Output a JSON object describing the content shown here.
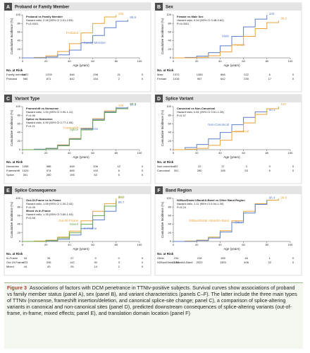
{
  "chart_data": [
    {
      "type": "line",
      "panel": "A",
      "title": "Proband or Family Member",
      "xlabel": "Age (years)",
      "ylabel": "Cumulative Incidence (%)",
      "x": [
        0,
        10,
        20,
        30,
        40,
        50,
        60,
        70,
        80,
        90
      ],
      "xlim": [
        0,
        100
      ],
      "xticks": [
        0,
        20,
        40,
        60,
        80,
        100
      ],
      "ylim": [
        0,
        100
      ],
      "yticks": [
        0,
        20,
        40,
        60,
        80,
        100
      ],
      "series": [
        {
          "name": "Proband",
          "color": "#e8a23a",
          "values": [
            0,
            1,
            5,
            15,
            33,
            58,
            80,
            95,
            100,
            null
          ],
          "end_value": 100
        },
        {
          "name": "Family Member",
          "color": "#5b7fc7",
          "values": [
            0,
            0,
            2,
            7,
            18,
            35,
            52,
            70,
            85,
            88.6
          ],
          "end_value": 88.6
        }
      ],
      "annotations": [
        "Proband vs Family Member",
        "Hazard ratio, 2.26 (95% CI 2.01-2.53)",
        "P<0.0001"
      ],
      "at_risk": {
        "title": "No. at Risk",
        "rows": [
          {
            "label": "Family member",
            "values": [
              1422,
              1378,
              846,
              298,
              21,
              0
            ]
          },
          {
            "label": "Proband",
            "values": [
              966,
              871,
              642,
              154,
              2,
              0
            ]
          }
        ]
      }
    },
    {
      "type": "line",
      "panel": "B",
      "title": "Sex",
      "xlabel": "Age (years)",
      "ylabel": "Cumulative Incidence (%)",
      "x": [
        0,
        10,
        20,
        30,
        40,
        50,
        60,
        70,
        80,
        90
      ],
      "xlim": [
        0,
        100
      ],
      "xticks": [
        0,
        20,
        40,
        60,
        80,
        100
      ],
      "ylim": [
        0,
        100
      ],
      "yticks": [
        0,
        20,
        40,
        60,
        80,
        100
      ],
      "series": [
        {
          "name": "Male",
          "color": "#5b7fc7",
          "values": [
            0,
            1,
            4,
            12,
            28,
            50,
            72,
            90,
            100,
            null
          ],
          "end_value": 100
        },
        {
          "name": "Female",
          "color": "#e8a23a",
          "values": [
            0,
            0,
            1,
            5,
            14,
            30,
            50,
            68,
            82,
            86.2
          ],
          "end_value": 86.2
        }
      ],
      "annotations": [
        "Female vs Male Sex",
        "Hazard ratio, 0.54 (95% CI 0.48-0.60)",
        "P<0.0001"
      ],
      "at_risk": {
        "title": "No. at Risk",
        "rows": [
          {
            "label": "Male",
            "values": [
              1372,
              1283,
              866,
              222,
              6,
              0
            ]
          },
          {
            "label": "Female",
            "values": [
              1016,
              957,
              642,
              230,
              17,
              0
            ]
          }
        ]
      }
    },
    {
      "type": "line",
      "panel": "C",
      "title": "Variant Type",
      "xlabel": "Age (years)",
      "ylabel": "Cumulative Incidence (%)",
      "x": [
        0,
        10,
        20,
        30,
        40,
        50,
        60,
        70,
        80,
        90
      ],
      "xlim": [
        0,
        100
      ],
      "xticks": [
        0,
        20,
        40,
        60,
        80,
        100
      ],
      "ylim": [
        0,
        100
      ],
      "yticks": [
        0,
        20,
        40,
        60,
        80,
        100
      ],
      "series": [
        {
          "name": "Frameshift",
          "color": "#e8a23a",
          "values": [
            0,
            1,
            3,
            11,
            26,
            50,
            72,
            90,
            100,
            null
          ],
          "end_value": 100
        },
        {
          "name": "Nonsense",
          "color": "#5b7fc7",
          "values": [
            0,
            1,
            3,
            10,
            25,
            48,
            70,
            88,
            97,
            99.3
          ],
          "end_value": 99.3
        },
        {
          "name": "Splice",
          "color": "#6aa84f",
          "values": [
            0,
            0,
            2,
            9,
            24,
            46,
            68,
            86,
            95,
            97.3
          ],
          "end_value": 97.3
        }
      ],
      "annotations": [
        "Frameshift vs Nonsense",
        "Hazard ratio, 1.00 (95% CI 0.90-1.11)",
        "P=0.96",
        "Splice vs Nonsense",
        "Hazard ratio, 0.90 (95% CI 0.77-1.06)",
        "P=0.21"
      ],
      "at_risk": {
        "title": "No. at Risk",
        "rows": [
          {
            "label": "Nonsense",
            "values": [
              1058,
              986,
              648,
              206,
              12,
              0
            ]
          },
          {
            "label": "Frameshift",
            "values": [
              1029,
              974,
              665,
              193,
              6,
              0
            ]
          },
          {
            "label": "Splice",
            "values": [
              301,
              280,
              195,
              53,
              5,
              0
            ]
          }
        ]
      }
    },
    {
      "type": "line",
      "panel": "D",
      "title": "Splice Variant",
      "xlabel": "Age (years)",
      "ylabel": "Cumulative Incidence (%)",
      "x": [
        0,
        10,
        20,
        30,
        40,
        50,
        60,
        70,
        80,
        90
      ],
      "xlim": [
        0,
        100
      ],
      "xticks": [
        0,
        20,
        40,
        60,
        80,
        100
      ],
      "ylim": [
        0,
        100
      ],
      "yticks": [
        0,
        20,
        40,
        60,
        80,
        100
      ],
      "series": [
        {
          "name": "Non-Canonical",
          "color": "#5b7fc7",
          "values": [
            0,
            5,
            12,
            25,
            40,
            58,
            75,
            88,
            90.3,
            null
          ],
          "end_value": 90.3
        },
        {
          "name": "Canonical",
          "color": "#e8a23a",
          "values": [
            0,
            1,
            3,
            10,
            22,
            42,
            62,
            82,
            95,
            100
          ],
          "end_value": 100
        }
      ],
      "annotations": [
        "Canonical vs Non-Canonical",
        "Hazard ratio, 0.81 (95% CI 0.51-1.28)",
        "P=0.37"
      ],
      "at_risk": {
        "title": "No. at Risk",
        "rows": [
          {
            "label": "Non-canonical",
            "values": [
              24,
              22,
              17,
              3,
              0,
              0
            ]
          },
          {
            "label": "Canonical",
            "values": [
              301,
              280,
              195,
              53,
              5,
              0
            ]
          }
        ]
      }
    },
    {
      "type": "line",
      "panel": "E",
      "title": "Splice Consequence",
      "xlabel": "Age (years)",
      "ylabel": "Cumulative Incidence (%)",
      "x": [
        0,
        10,
        20,
        30,
        40,
        50,
        60,
        70,
        80,
        90
      ],
      "xlim": [
        0,
        100
      ],
      "xticks": [
        0,
        20,
        40,
        60,
        80,
        100
      ],
      "ylim": [
        0,
        100
      ],
      "yticks": [
        0,
        20,
        40,
        60,
        80,
        100
      ],
      "series": [
        {
          "name": "Out-Of-Frame",
          "color": "#e8a23a",
          "values": [
            0,
            1,
            3,
            10,
            24,
            48,
            70,
            88,
            100,
            null
          ],
          "end_value": 100
        },
        {
          "name": "In-Frame",
          "color": "#5b7fc7",
          "values": [
            0,
            0,
            1,
            5,
            15,
            30,
            50,
            70,
            85.7,
            null
          ],
          "end_value": 85.7
        },
        {
          "name": "Mixed",
          "color": "#6aa84f",
          "values": [
            0,
            0,
            2,
            8,
            20,
            40,
            60,
            82,
            94.9,
            null
          ],
          "end_value": 94.9
        }
      ],
      "annotations": [
        "Out-Of-Frame vs In-Frame",
        "Hazard ratio, 1.56 (95% CI 1.00-2.44)",
        "P=0.05",
        "Mixed vs In-Frame",
        "Hazard ratio, 1.35 (95% CI 0.69-1.93)",
        "P=0.58"
      ],
      "at_risk": {
        "title": "No. at Risk",
        "rows": [
          {
            "label": "In-Frame",
            "values": [
              34,
              34,
              27,
              9,
              0,
              0
            ]
          },
          {
            "label": "Out-Of-Frame",
            "values": [
              223,
              206,
              142,
              30,
              3,
              0
            ]
          },
          {
            "label": "Mixed",
            "values": [
              44,
              40,
              26,
              14,
              2,
              0
            ]
          }
        ]
      }
    },
    {
      "type": "line",
      "panel": "F",
      "title": "Band Region",
      "xlabel": "Age (years)",
      "ylabel": "Cumulative Incidence (%)",
      "x": [
        0,
        10,
        20,
        30,
        40,
        50,
        60,
        70,
        80,
        90
      ],
      "xlim": [
        0,
        100
      ],
      "xticks": [
        0,
        20,
        40,
        60,
        80,
        100
      ],
      "ylim": [
        0,
        100
      ],
      "yticks": [
        0,
        20,
        40,
        60,
        80,
        100
      ],
      "series": [
        {
          "name": "N2Bus/Distal I-Band/A-Band",
          "color": "#e8a23a",
          "values": [
            0,
            1,
            3,
            10,
            25,
            48,
            70,
            88,
            96,
            99.6
          ],
          "end_value": 99.6
        },
        {
          "name": "Other",
          "color": "#5b7fc7",
          "values": [
            0,
            0,
            2,
            8,
            22,
            44,
            66,
            86,
            96.4,
            null
          ],
          "end_value": 96.4
        }
      ],
      "annotations": [
        "N2Bus/Distal I-Band/A-Band vs Other Band Region",
        "Hazard ratio, 1.11 (95% CI 0.94-1.30)",
        "P=0.24"
      ],
      "at_risk": {
        "title": "No. at Risk",
        "rows": [
          {
            "label": "Other",
            "values": [
              234,
              218,
              155,
              46,
              1,
              0
            ]
          },
          {
            "label": "N2Bus/Distal I-Band/A-Band",
            "values": [
              2154,
              2022,
              1353,
              406,
              22,
              0
            ]
          }
        ]
      }
    }
  ],
  "caption": {
    "label": "Figure 3",
    "text": "Associations of factors with DCM penetrance in TTNtv-positive subjects. Survival curves show associations of proband vs family member status (panel A), sex (panel B), and variant characteristics (panels C–F). The latter include the three main types of TTNtv (nonsense, frameshift insertion/deletion, and canonical splice-site change; panel C), a comparison of splice-altering variants in canonical and non-canonical sites (panel D), predicted downstream consequences of splice-altering variants (out-of-frame, in-frame, mixed effects; panel E), and translation domain location (panel F)"
  }
}
